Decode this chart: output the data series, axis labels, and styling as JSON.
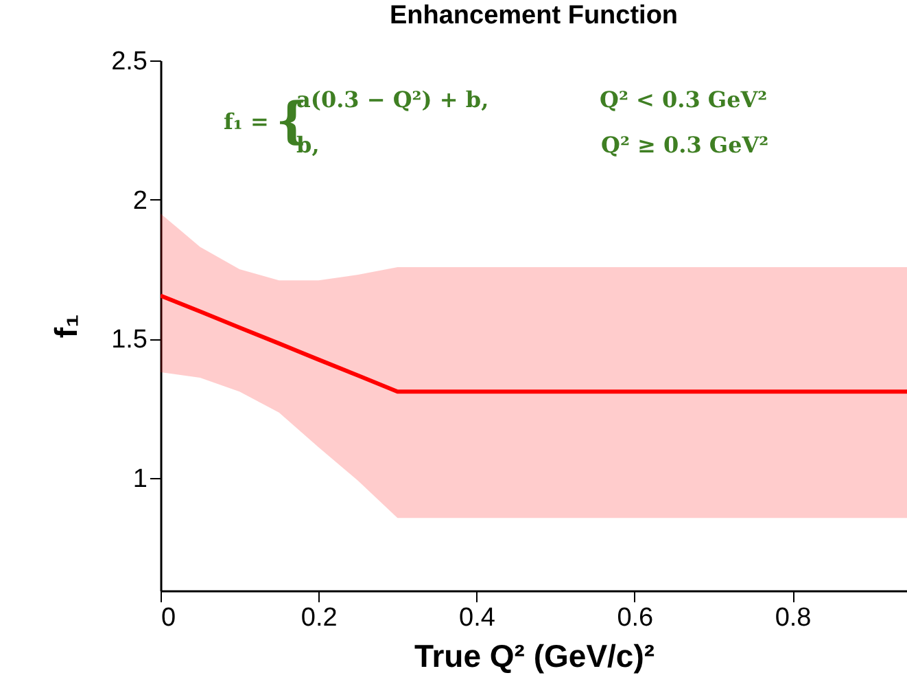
{
  "chart_data": {
    "type": "line",
    "title": "Enhancement Function",
    "xlabel": "True Q² (GeV/c)²",
    "ylabel": "f₁",
    "x": [
      0,
      0.05,
      0.1,
      0.15,
      0.2,
      0.25,
      0.3,
      0.945
    ],
    "series": [
      {
        "color": "#ff0000",
        "values": [
          1.655,
          1.598,
          1.54,
          1.483,
          1.425,
          1.368,
          1.31,
          1.31
        ],
        "lower": [
          1.38,
          1.36,
          1.31,
          1.235,
          1.11,
          0.99,
          0.856,
          0.856
        ],
        "upper": [
          1.95,
          1.83,
          1.75,
          1.71,
          1.71,
          1.73,
          1.757,
          1.757
        ]
      }
    ],
    "xlim": [
      0,
      0.945
    ],
    "ylim": [
      0.595,
      2.5
    ],
    "xticks": [
      0,
      0.2,
      0.4,
      0.6,
      0.8
    ],
    "yticks": [
      1,
      1.5,
      2,
      2.5
    ],
    "grid": false,
    "marker": "none",
    "line_style": "solid",
    "annotations": [
      "f₁ =",
      "{",
      "a(0.3 − Q²) + b,",
      "Q² < 0.3 GeV²",
      "b,",
      "Q² ≥ 0.3 GeV²"
    ]
  }
}
